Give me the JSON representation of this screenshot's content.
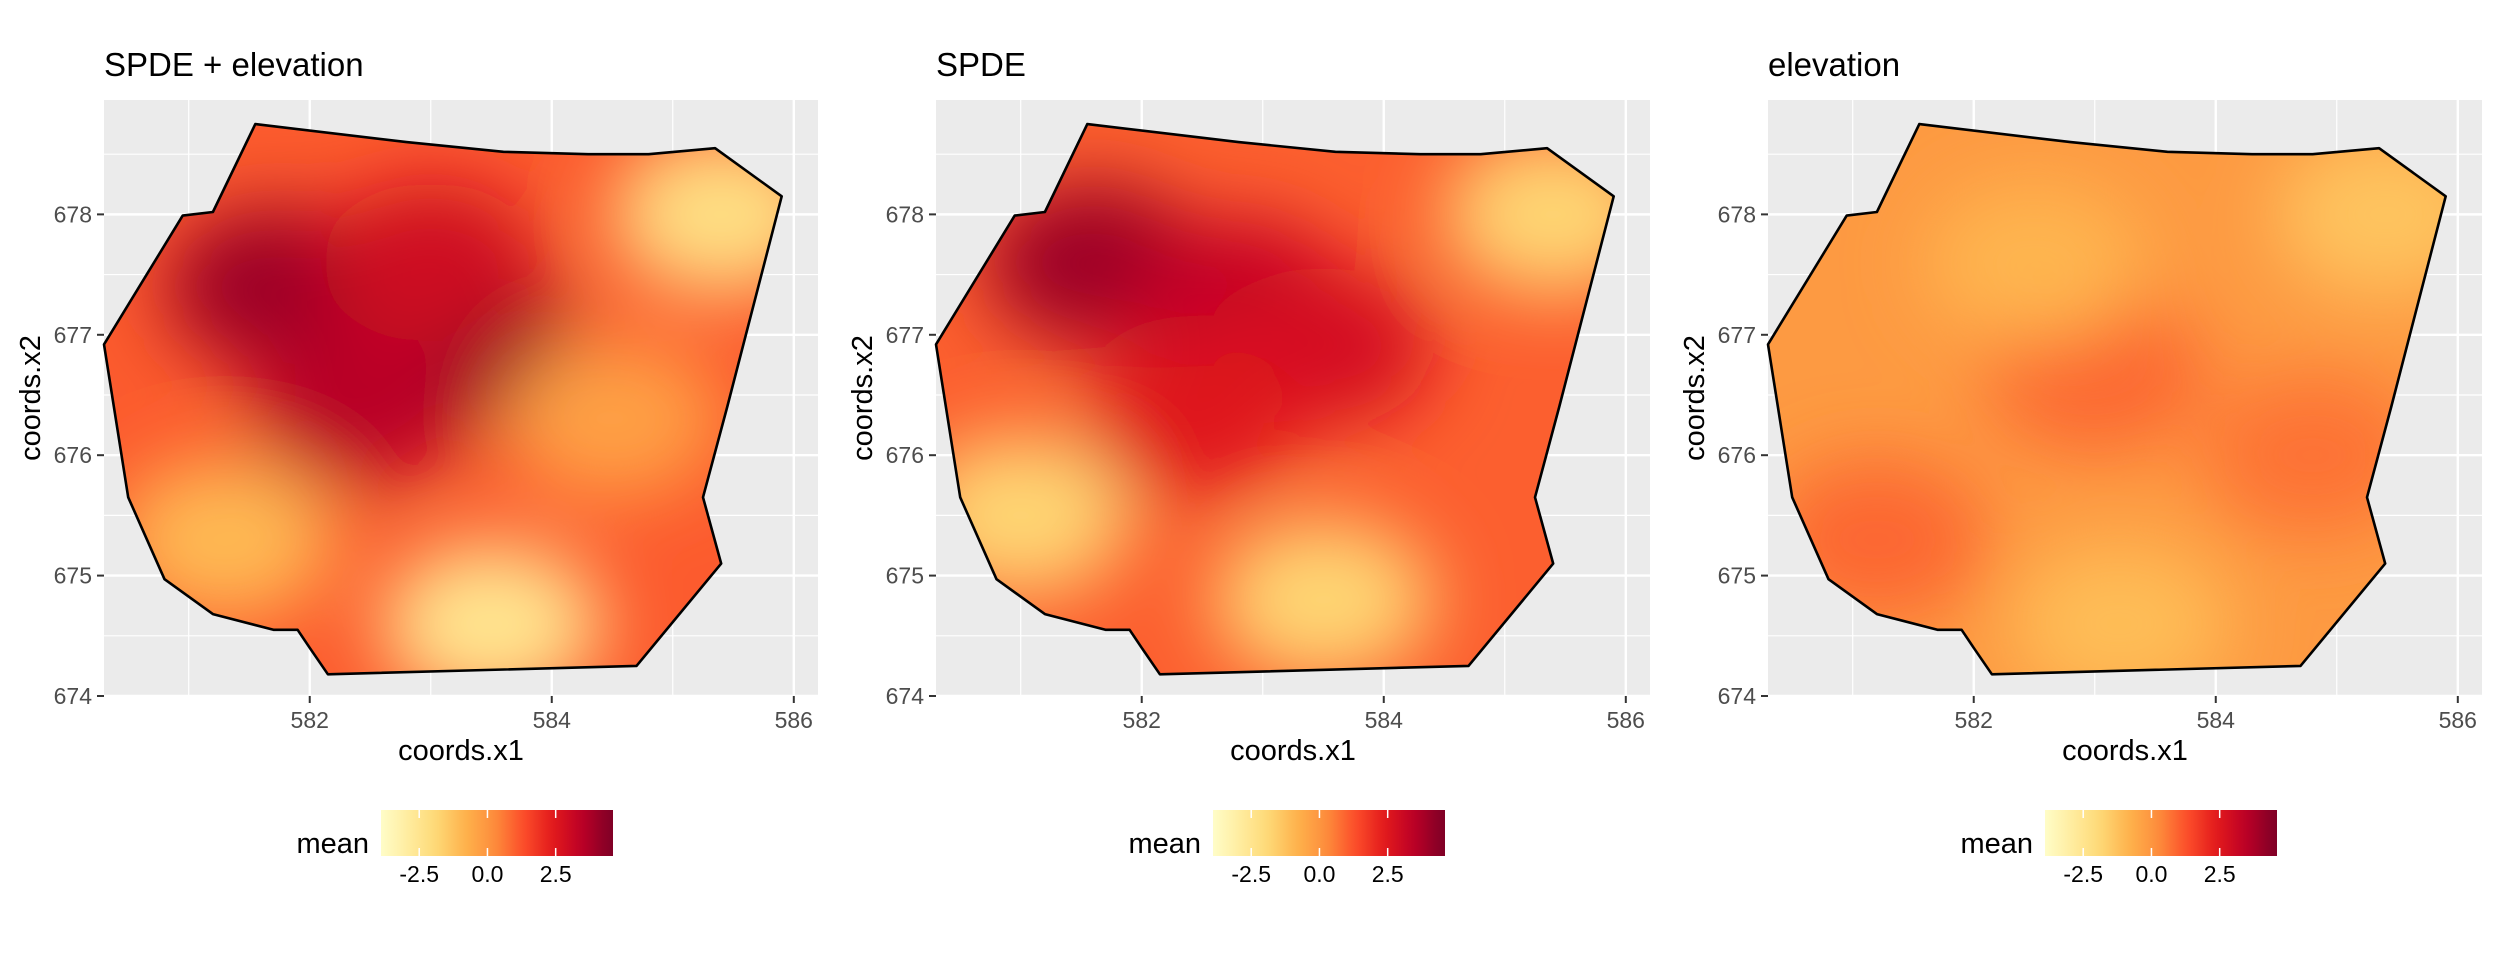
{
  "chart_data": [
    {
      "type": "heatmap",
      "title": "SPDE + elevation",
      "xlabel": "coords.x1",
      "ylabel": "coords.x2",
      "xlim": [
        580.3,
        586.2
      ],
      "ylim": [
        674.0,
        678.95
      ],
      "x_ticks": [
        "582",
        "584",
        "586"
      ],
      "y_ticks": [
        "674",
        "675",
        "676",
        "677",
        "678"
      ],
      "grid": true,
      "boundary": [
        [
          581.55,
          678.75
        ],
        [
          582.8,
          678.6
        ],
        [
          583.6,
          678.52
        ],
        [
          584.3,
          678.5
        ],
        [
          584.8,
          678.5
        ],
        [
          585.35,
          678.55
        ],
        [
          585.9,
          678.15
        ],
        [
          585.45,
          676.4
        ],
        [
          585.25,
          675.65
        ],
        [
          585.4,
          675.1
        ],
        [
          584.7,
          674.25
        ],
        [
          582.15,
          674.18
        ],
        [
          582.0,
          674.4
        ],
        [
          581.9,
          674.55
        ],
        [
          581.7,
          674.55
        ],
        [
          581.2,
          674.68
        ],
        [
          580.8,
          674.97
        ],
        [
          580.5,
          675.65
        ],
        [
          580.3,
          676.92
        ],
        [
          580.95,
          677.99
        ],
        [
          581.2,
          678.02
        ],
        [
          581.55,
          678.75
        ]
      ],
      "field": [
        {
          "x": 581.7,
          "y": 677.4,
          "v": 4.0
        },
        {
          "x": 583.3,
          "y": 676.9,
          "v": 4.3
        },
        {
          "x": 582.4,
          "y": 676.4,
          "v": 3.5
        },
        {
          "x": 583.0,
          "y": 677.6,
          "v": 3.0
        },
        {
          "x": 585.4,
          "y": 678.0,
          "v": -2.2
        },
        {
          "x": 583.5,
          "y": 674.6,
          "v": -2.5
        },
        {
          "x": 581.3,
          "y": 675.3,
          "v": -1.0
        },
        {
          "x": 584.5,
          "y": 676.3,
          "v": -0.3
        }
      ],
      "legend": {
        "title": "mean",
        "ticks": [
          "-2.5",
          "0.0",
          "2.5"
        ],
        "position": "bottom"
      }
    },
    {
      "type": "heatmap",
      "title": "SPDE",
      "xlabel": "coords.x1",
      "ylabel": "coords.x2",
      "xlim": [
        580.3,
        586.2
      ],
      "ylim": [
        674.0,
        678.95
      ],
      "x_ticks": [
        "582",
        "584",
        "586"
      ],
      "y_ticks": [
        "674",
        "675",
        "676",
        "677",
        "678"
      ],
      "grid": true,
      "boundary": [
        [
          581.55,
          678.75
        ],
        [
          582.8,
          678.6
        ],
        [
          583.6,
          678.52
        ],
        [
          584.3,
          678.5
        ],
        [
          584.8,
          678.5
        ],
        [
          585.35,
          678.55
        ],
        [
          585.9,
          678.15
        ],
        [
          585.45,
          676.4
        ],
        [
          585.25,
          675.65
        ],
        [
          585.4,
          675.1
        ],
        [
          584.7,
          674.25
        ],
        [
          582.15,
          674.18
        ],
        [
          582.0,
          674.4
        ],
        [
          581.9,
          674.55
        ],
        [
          581.7,
          674.55
        ],
        [
          581.2,
          674.68
        ],
        [
          580.8,
          674.97
        ],
        [
          580.5,
          675.65
        ],
        [
          580.3,
          676.92
        ],
        [
          580.95,
          677.99
        ],
        [
          581.2,
          678.02
        ],
        [
          581.55,
          678.75
        ]
      ],
      "field": [
        {
          "x": 581.6,
          "y": 677.6,
          "v": 4.0
        },
        {
          "x": 582.8,
          "y": 677.3,
          "v": 3.3
        },
        {
          "x": 583.5,
          "y": 676.9,
          "v": 2.8
        },
        {
          "x": 582.4,
          "y": 676.3,
          "v": 2.5
        },
        {
          "x": 585.4,
          "y": 678.0,
          "v": -1.8
        },
        {
          "x": 583.5,
          "y": 674.8,
          "v": -1.8
        },
        {
          "x": 581.0,
          "y": 675.5,
          "v": -1.8
        }
      ],
      "legend": {
        "title": "mean",
        "ticks": [
          "-2.5",
          "0.0",
          "2.5"
        ],
        "position": "bottom"
      }
    },
    {
      "type": "heatmap",
      "title": "elevation",
      "xlabel": "coords.x1",
      "ylabel": "coords.x2",
      "xlim": [
        580.3,
        586.2
      ],
      "ylim": [
        674.0,
        678.95
      ],
      "x_ticks": [
        "582",
        "584",
        "586"
      ],
      "y_ticks": [
        "674",
        "675",
        "676",
        "677",
        "678"
      ],
      "grid": true,
      "boundary": [
        [
          581.55,
          678.75
        ],
        [
          582.8,
          678.6
        ],
        [
          583.6,
          678.52
        ],
        [
          584.3,
          678.5
        ],
        [
          584.8,
          678.5
        ],
        [
          585.35,
          678.55
        ],
        [
          585.9,
          678.15
        ],
        [
          585.45,
          676.4
        ],
        [
          585.25,
          675.65
        ],
        [
          585.4,
          675.1
        ],
        [
          584.7,
          674.25
        ],
        [
          582.15,
          674.18
        ],
        [
          582.0,
          674.4
        ],
        [
          581.9,
          674.55
        ],
        [
          581.7,
          674.55
        ],
        [
          581.2,
          674.68
        ],
        [
          580.8,
          674.97
        ],
        [
          580.5,
          675.65
        ],
        [
          580.3,
          676.92
        ],
        [
          580.95,
          677.99
        ],
        [
          581.2,
          678.02
        ],
        [
          581.55,
          678.75
        ]
      ],
      "field": [
        {
          "x": 583.0,
          "y": 676.7,
          "v": 0.9
        },
        {
          "x": 584.8,
          "y": 676.0,
          "v": 0.7
        },
        {
          "x": 581.2,
          "y": 675.3,
          "v": 0.9
        },
        {
          "x": 582.5,
          "y": 677.6,
          "v": -0.9
        },
        {
          "x": 585.4,
          "y": 678.0,
          "v": -1.3
        },
        {
          "x": 583.2,
          "y": 674.6,
          "v": -1.1
        }
      ],
      "legend": {
        "title": "mean",
        "ticks": [
          "-2.5",
          "0.0",
          "2.5"
        ],
        "position": "bottom"
      }
    }
  ],
  "colors": {
    "panel_bg": "#ebebeb",
    "grid_major": "#ffffff",
    "boundary": "#000000",
    "scale": [
      "#ffffcc",
      "#ffeda0",
      "#fed976",
      "#feb24c",
      "#fd8d3c",
      "#fc4e2a",
      "#e31a1c",
      "#bd0026",
      "#800026"
    ]
  },
  "color_range": [
    -4.0,
    4.5
  ],
  "legend_range": [
    -3.9,
    4.6
  ]
}
